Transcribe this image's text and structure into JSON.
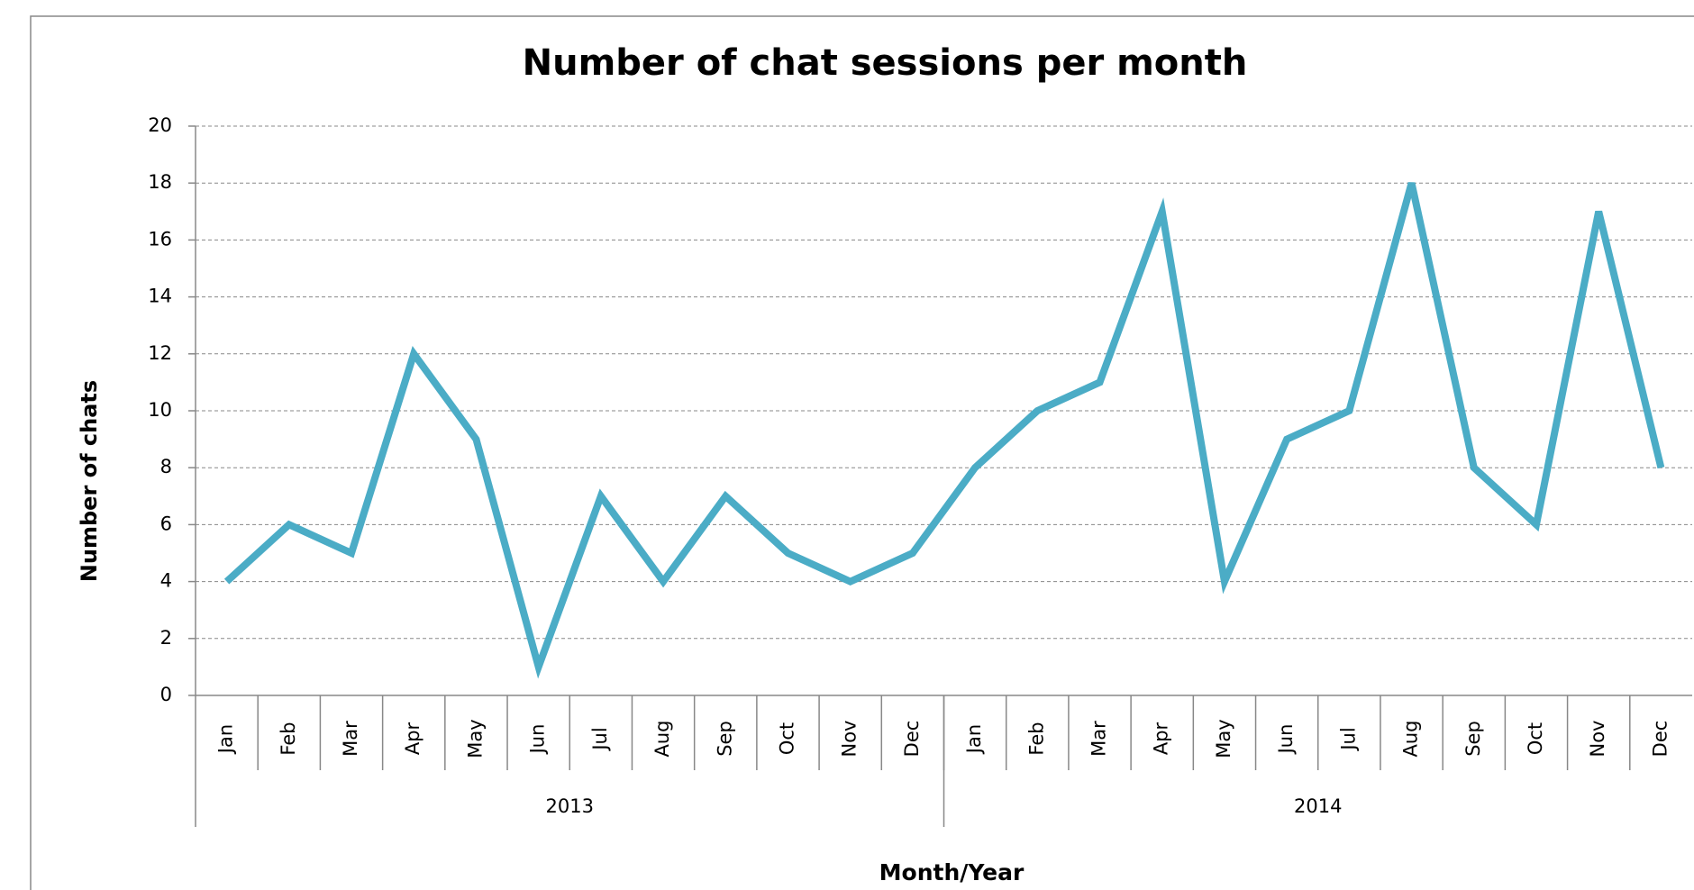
{
  "chart_data": {
    "type": "line",
    "title": "Number of chat sessions per month",
    "x_label": "Month/Year",
    "y_label": "Number of chats",
    "categories": [
      "Jan",
      "Feb",
      "Mar",
      "Apr",
      "May",
      "Jun",
      "Jul",
      "Aug",
      "Sep",
      "Oct",
      "Nov",
      "Dec",
      "Jan",
      "Feb",
      "Mar",
      "Apr",
      "May",
      "Jun",
      "Jul",
      "Aug",
      "Sep",
      "Oct",
      "Nov",
      "Dec"
    ],
    "category_groups": [
      "2013",
      "2014"
    ],
    "series": [
      {
        "name": "Number of chats",
        "color": "#4bacc6",
        "values": [
          4,
          6,
          5,
          12,
          9,
          1,
          7,
          4,
          7,
          5,
          4,
          5,
          8,
          10,
          11,
          17,
          4,
          9,
          10,
          18,
          8,
          6,
          17,
          8
        ]
      }
    ],
    "ylim": [
      0,
      20
    ],
    "yticks": [
      0,
      2,
      4,
      6,
      8,
      10,
      12,
      14,
      16,
      18,
      20
    ],
    "grid": true
  }
}
